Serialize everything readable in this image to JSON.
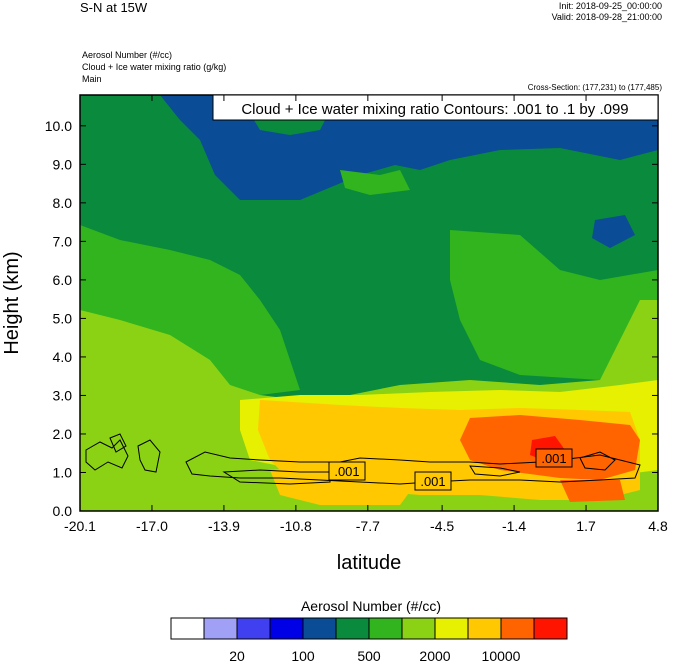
{
  "header": {
    "title": "S-N at 15W",
    "init": "Init: 2018-09-25_00:00:00",
    "valid": "Valid: 2018-09-28_21:00:00"
  },
  "subtitles": [
    "Aerosol Number   (#/cc)",
    "Cloud + Ice water mixing ratio   (g/kg)",
    "Main"
  ],
  "cross_section": "Cross-Section: (177,231) to (177,485)",
  "chart_data": {
    "type": "heatmap",
    "title": "Cloud + Ice water mixing ratio Contours: .001 to .1 by .099",
    "xlabel": "latitude",
    "ylabel": "Height (km)",
    "xlim": [
      -20.1,
      4.8
    ],
    "ylim": [
      0.0,
      10.8
    ],
    "x_ticks": [
      "-20.1",
      "-17.0",
      "-13.9",
      "-10.8",
      "-7.7",
      "-4.5",
      "-1.4",
      "1.7",
      "4.8"
    ],
    "y_ticks": [
      "0.0",
      "1.0",
      "2.0",
      "3.0",
      "4.0",
      "5.0",
      "6.0",
      "7.0",
      "8.0",
      "9.0",
      "10.0"
    ],
    "contour_labels": [
      ".001",
      ".001",
      ".001"
    ],
    "colorbar": {
      "title": "Aerosol Number  (#/cc)",
      "colors": [
        "#ffffff",
        "#a0a0f7",
        "#4040f0",
        "#0000e6",
        "#0a4c96",
        "#0a8a3c",
        "#32b41e",
        "#8cd214",
        "#e6f000",
        "#ffc800",
        "#ff6400",
        "#ff1400"
      ],
      "labels": [
        "20",
        "100",
        "500",
        "2000",
        "10000"
      ]
    }
  }
}
